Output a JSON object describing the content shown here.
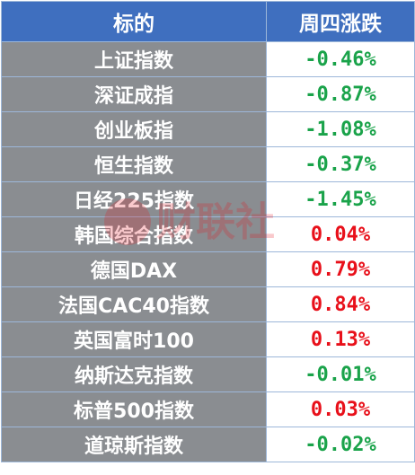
{
  "table": {
    "headers": {
      "name": "标的",
      "change": "周四涨跌"
    },
    "rows": [
      {
        "name": "上证指数",
        "change": "-0.46%",
        "direction": "down"
      },
      {
        "name": "深证成指",
        "change": "-0.87%",
        "direction": "down"
      },
      {
        "name": "创业板指",
        "change": "-1.08%",
        "direction": "down"
      },
      {
        "name": "恒生指数",
        "change": "-0.37%",
        "direction": "down"
      },
      {
        "name": "日经225指数",
        "change": "-1.45%",
        "direction": "down"
      },
      {
        "name": "韩国综合指数",
        "change": "0.04%",
        "direction": "up"
      },
      {
        "name": "德国DAX",
        "change": "0.79%",
        "direction": "up"
      },
      {
        "name": "法国CAC40指数",
        "change": "0.84%",
        "direction": "up"
      },
      {
        "name": "英国富时100",
        "change": "0.13%",
        "direction": "up"
      },
      {
        "name": "纳斯达克指数",
        "change": "-0.01%",
        "direction": "down"
      },
      {
        "name": "标普500指数",
        "change": "0.03%",
        "direction": "up"
      },
      {
        "name": "道琼斯指数",
        "change": "-0.02%",
        "direction": "down"
      }
    ]
  },
  "colors": {
    "header_bg": "#3f6fbf",
    "name_bg": "#8a8d91",
    "down": "#1aa34a",
    "up": "#e8101a",
    "border": "#9db7d9"
  },
  "watermark": {
    "text": "财联社",
    "icon": "cls-logo-icon"
  }
}
